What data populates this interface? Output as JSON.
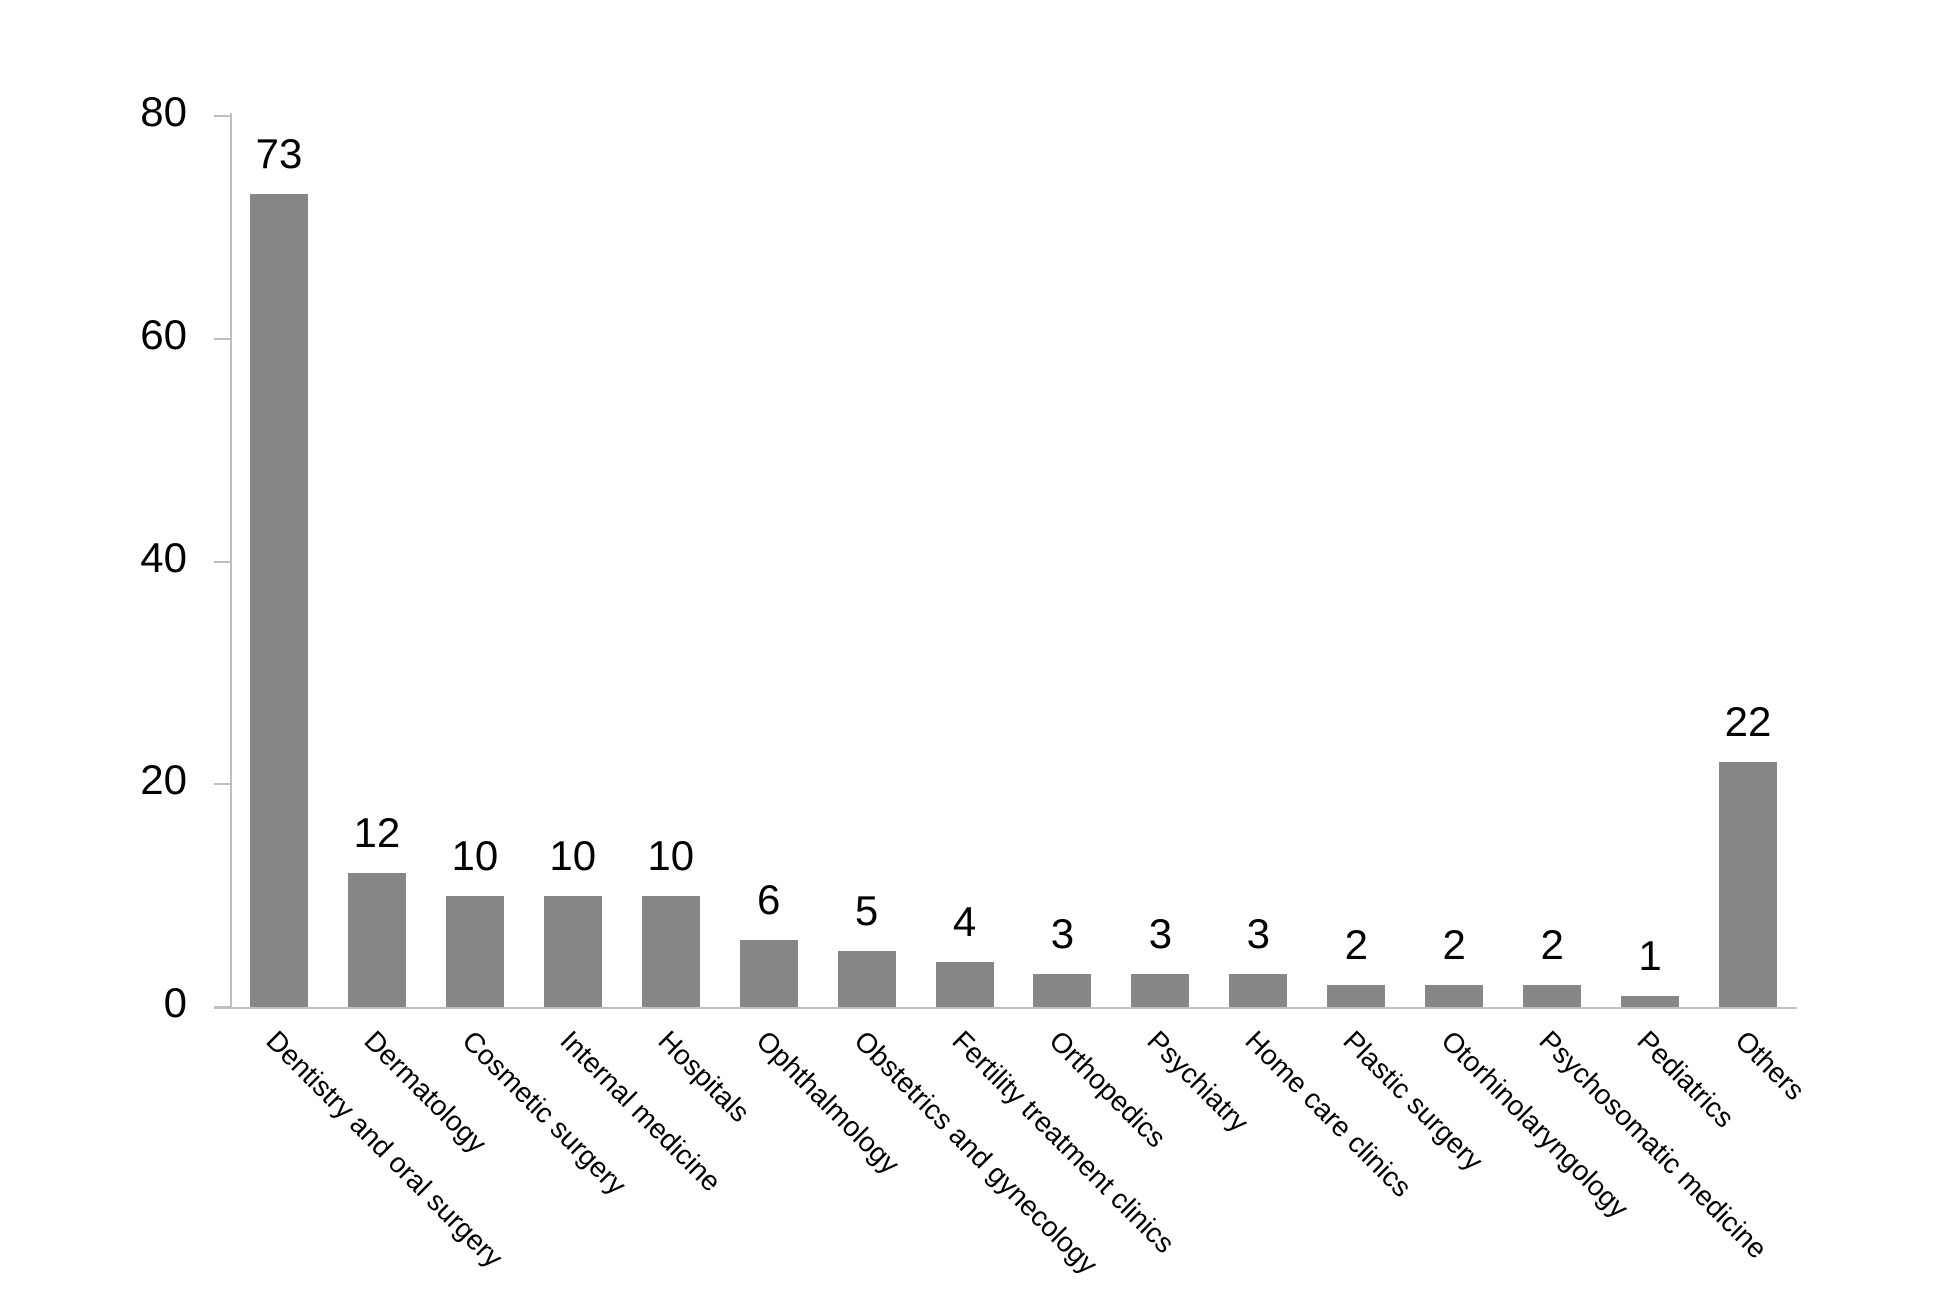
{
  "chart_data": {
    "type": "bar",
    "title": "",
    "xlabel": "",
    "ylabel": "",
    "categories": [
      "Dentistry and oral surgery",
      "Dermatology",
      "Cosmetic surgery",
      "Internal medicine",
      "Hospitals",
      "Ophthalmology",
      "Obstetrics and gynecology",
      "Fertility treatment clinics",
      "Orthopedics",
      "Psychiatry",
      "Home care clinics",
      "Plastic surgery",
      "Otorhinolaryngology",
      "Psychosomatic medicine",
      "Pediatrics",
      "Others"
    ],
    "values": [
      73,
      12,
      10,
      10,
      10,
      6,
      5,
      4,
      3,
      3,
      3,
      2,
      2,
      2,
      1,
      22
    ],
    "data_labels": [
      "73",
      "12",
      "10",
      "10",
      "10",
      "6",
      "5",
      "4",
      "3",
      "3",
      "3",
      "2",
      "2",
      "2",
      "1",
      "22"
    ],
    "yticks": [
      0,
      20,
      40,
      60,
      80
    ],
    "ylim": [
      0,
      80
    ],
    "grid": "off",
    "legend_position": "none",
    "bar_color": "#878787",
    "axis_color": "#bfbfbf",
    "text_color": "#000000",
    "background_color": "#ffffff",
    "x_label_rotation_deg": 45
  }
}
